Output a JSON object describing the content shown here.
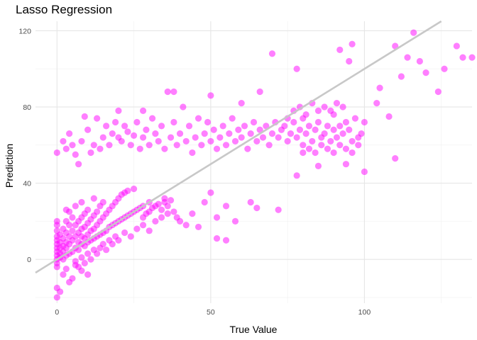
{
  "chart_data": {
    "type": "scatter",
    "title": "Lasso Regression",
    "xlabel": "True Value",
    "ylabel": "Prediction",
    "xlim": [
      -7,
      135
    ],
    "ylim": [
      -23,
      125
    ],
    "x_ticks": [
      0,
      50,
      100
    ],
    "y_ticks": [
      0,
      40,
      80,
      120
    ],
    "grid": true,
    "point_color": "#FF00FF",
    "point_opacity": 0.5,
    "reference_line": {
      "slope": 1,
      "intercept": 0,
      "color": "#C8C8C8"
    },
    "series": [
      {
        "points": [
          [
            0,
            -20
          ],
          [
            0,
            -15
          ],
          [
            1,
            -17
          ],
          [
            2,
            -8
          ],
          [
            4,
            -12
          ],
          [
            5,
            -10
          ],
          [
            3,
            -5
          ],
          [
            6,
            -3
          ],
          [
            8,
            -6
          ],
          [
            10,
            -8
          ],
          [
            0,
            0
          ],
          [
            0,
            2
          ],
          [
            0,
            4
          ],
          [
            0,
            6
          ],
          [
            0,
            8
          ],
          [
            0,
            10
          ],
          [
            0,
            12
          ],
          [
            0,
            15
          ],
          [
            0,
            18
          ],
          [
            0,
            20
          ],
          [
            0,
            -2
          ],
          [
            0,
            -4
          ],
          [
            1,
            1
          ],
          [
            1,
            3
          ],
          [
            1,
            6
          ],
          [
            1,
            9
          ],
          [
            1,
            13
          ],
          [
            2,
            0
          ],
          [
            2,
            4
          ],
          [
            2,
            7
          ],
          [
            2,
            11
          ],
          [
            2,
            16
          ],
          [
            3,
            2
          ],
          [
            3,
            6
          ],
          [
            3,
            9
          ],
          [
            3,
            14
          ],
          [
            3,
            20
          ],
          [
            3,
            26
          ],
          [
            4,
            3
          ],
          [
            4,
            8
          ],
          [
            4,
            12
          ],
          [
            4,
            18
          ],
          [
            4,
            25
          ],
          [
            5,
            4
          ],
          [
            5,
            10
          ],
          [
            5,
            15
          ],
          [
            5,
            22
          ],
          [
            6,
            6
          ],
          [
            6,
            12
          ],
          [
            6,
            18
          ],
          [
            6,
            28
          ],
          [
            7,
            5
          ],
          [
            7,
            9
          ],
          [
            7,
            14
          ],
          [
            7,
            20
          ],
          [
            8,
            8
          ],
          [
            8,
            12
          ],
          [
            8,
            16
          ],
          [
            8,
            22
          ],
          [
            8,
            30
          ],
          [
            9,
            7
          ],
          [
            9,
            11
          ],
          [
            9,
            17
          ],
          [
            9,
            24
          ],
          [
            10,
            9
          ],
          [
            10,
            13
          ],
          [
            10,
            19
          ],
          [
            10,
            26
          ],
          [
            11,
            10
          ],
          [
            11,
            15
          ],
          [
            11,
            21
          ],
          [
            12,
            11
          ],
          [
            12,
            16
          ],
          [
            12,
            23
          ],
          [
            12,
            32
          ],
          [
            13,
            12
          ],
          [
            13,
            18
          ],
          [
            13,
            25
          ],
          [
            14,
            13
          ],
          [
            14,
            20
          ],
          [
            14,
            28
          ],
          [
            15,
            14
          ],
          [
            15,
            22
          ],
          [
            15,
            30
          ],
          [
            16,
            15
          ],
          [
            16,
            24
          ],
          [
            17,
            17
          ],
          [
            17,
            26
          ],
          [
            18,
            18
          ],
          [
            18,
            28
          ],
          [
            19,
            19
          ],
          [
            19,
            30
          ],
          [
            20,
            20
          ],
          [
            20,
            32
          ],
          [
            21,
            21
          ],
          [
            21,
            34
          ],
          [
            22,
            22
          ],
          [
            22,
            35
          ],
          [
            23,
            23
          ],
          [
            23,
            36
          ],
          [
            24,
            24
          ],
          [
            25,
            25
          ],
          [
            25,
            37
          ],
          [
            26,
            26
          ],
          [
            27,
            27
          ],
          [
            28,
            22
          ],
          [
            28,
            28
          ],
          [
            29,
            24
          ],
          [
            30,
            25
          ],
          [
            30,
            30
          ],
          [
            31,
            27
          ],
          [
            32,
            28
          ],
          [
            33,
            29
          ],
          [
            34,
            26
          ],
          [
            35,
            30
          ],
          [
            35,
            32
          ],
          [
            36,
            28
          ],
          [
            37,
            31
          ],
          [
            38,
            25
          ],
          [
            39,
            22
          ],
          [
            40,
            20
          ],
          [
            42,
            18
          ],
          [
            44,
            24
          ],
          [
            46,
            17
          ],
          [
            48,
            30
          ],
          [
            50,
            35
          ],
          [
            52,
            22
          ],
          [
            55,
            28
          ],
          [
            6,
            -1
          ],
          [
            7,
            -4
          ],
          [
            8,
            1
          ],
          [
            9,
            -2
          ],
          [
            10,
            3
          ],
          [
            11,
            0
          ],
          [
            12,
            5
          ],
          [
            13,
            3
          ],
          [
            14,
            6
          ],
          [
            15,
            8
          ],
          [
            16,
            5
          ],
          [
            17,
            10
          ],
          [
            18,
            8
          ],
          [
            19,
            12
          ],
          [
            20,
            10
          ],
          [
            22,
            14
          ],
          [
            24,
            12
          ],
          [
            26,
            16
          ],
          [
            28,
            18
          ],
          [
            30,
            15
          ],
          [
            32,
            20
          ],
          [
            34,
            22
          ],
          [
            36,
            24
          ],
          [
            0,
            56
          ],
          [
            2,
            62
          ],
          [
            3,
            58
          ],
          [
            4,
            66
          ],
          [
            5,
            60
          ],
          [
            6,
            55
          ],
          [
            7,
            50
          ],
          [
            8,
            62
          ],
          [
            9,
            75
          ],
          [
            10,
            68
          ],
          [
            11,
            56
          ],
          [
            12,
            60
          ],
          [
            13,
            74
          ],
          [
            14,
            58
          ],
          [
            15,
            64
          ],
          [
            16,
            70
          ],
          [
            17,
            60
          ],
          [
            18,
            66
          ],
          [
            19,
            72
          ],
          [
            20,
            64
          ],
          [
            20,
            78
          ],
          [
            21,
            62
          ],
          [
            22,
            70
          ],
          [
            23,
            67
          ],
          [
            24,
            60
          ],
          [
            25,
            65
          ],
          [
            26,
            72
          ],
          [
            27,
            58
          ],
          [
            28,
            64
          ],
          [
            28,
            78
          ],
          [
            29,
            68
          ],
          [
            30,
            60
          ],
          [
            31,
            74
          ],
          [
            32,
            66
          ],
          [
            33,
            62
          ],
          [
            34,
            70
          ],
          [
            35,
            58
          ],
          [
            36,
            88
          ],
          [
            37,
            64
          ],
          [
            38,
            72
          ],
          [
            38,
            88
          ],
          [
            39,
            60
          ],
          [
            40,
            66
          ],
          [
            41,
            80
          ],
          [
            42,
            62
          ],
          [
            43,
            70
          ],
          [
            44,
            56
          ],
          [
            45,
            64
          ],
          [
            46,
            74
          ],
          [
            47,
            60
          ],
          [
            48,
            66
          ],
          [
            49,
            72
          ],
          [
            50,
            62
          ],
          [
            50,
            86
          ],
          [
            51,
            68
          ],
          [
            52,
            58
          ],
          [
            53,
            64
          ],
          [
            54,
            70
          ],
          [
            55,
            60
          ],
          [
            56,
            66
          ],
          [
            57,
            74
          ],
          [
            58,
            62
          ],
          [
            59,
            68
          ],
          [
            60,
            64
          ],
          [
            60,
            82
          ],
          [
            61,
            70
          ],
          [
            62,
            58
          ],
          [
            63,
            66
          ],
          [
            64,
            72
          ],
          [
            65,
            62
          ],
          [
            66,
            68
          ],
          [
            66,
            88
          ],
          [
            67,
            64
          ],
          [
            68,
            70
          ],
          [
            69,
            60
          ],
          [
            70,
            66
          ],
          [
            70,
            108
          ],
          [
            71,
            72
          ],
          [
            72,
            64
          ],
          [
            73,
            68
          ],
          [
            74,
            70
          ],
          [
            75,
            62
          ],
          [
            76,
            66
          ],
          [
            77,
            72
          ],
          [
            78,
            64
          ],
          [
            78,
            100
          ],
          [
            79,
            68
          ],
          [
            80,
            60
          ],
          [
            80,
            74
          ],
          [
            81,
            66
          ],
          [
            82,
            70
          ],
          [
            83,
            62
          ],
          [
            84,
            68
          ],
          [
            85,
            72
          ],
          [
            86,
            64
          ],
          [
            87,
            66
          ],
          [
            88,
            70
          ],
          [
            89,
            62
          ],
          [
            90,
            68
          ],
          [
            90,
            76
          ],
          [
            91,
            64
          ],
          [
            92,
            70
          ],
          [
            93,
            66
          ],
          [
            94,
            72
          ],
          [
            95,
            68
          ],
          [
            96,
            62
          ],
          [
            97,
            74
          ],
          [
            98,
            60
          ],
          [
            99,
            66
          ],
          [
            100,
            72
          ],
          [
            92,
            110
          ],
          [
            95,
            104
          ],
          [
            96,
            113
          ],
          [
            100,
            46
          ],
          [
            104,
            82
          ],
          [
            105,
            90
          ],
          [
            108,
            75
          ],
          [
            110,
            112
          ],
          [
            112,
            96
          ],
          [
            114,
            106
          ],
          [
            116,
            119
          ],
          [
            118,
            104
          ],
          [
            120,
            98
          ],
          [
            124,
            88
          ],
          [
            126,
            100
          ],
          [
            130,
            112
          ],
          [
            132,
            106
          ],
          [
            135,
            106
          ],
          [
            110,
            53
          ],
          [
            94,
            50
          ],
          [
            85,
            49
          ],
          [
            78,
            44
          ],
          [
            72,
            26
          ],
          [
            65,
            27
          ],
          [
            63,
            30
          ],
          [
            58,
            20
          ],
          [
            55,
            10
          ],
          [
            52,
            11
          ],
          [
            80,
            56
          ],
          [
            82,
            58
          ],
          [
            84,
            56
          ],
          [
            86,
            60
          ],
          [
            88,
            58
          ],
          [
            90,
            56
          ],
          [
            92,
            60
          ],
          [
            94,
            58
          ],
          [
            96,
            56
          ],
          [
            98,
            64
          ],
          [
            75,
            74
          ],
          [
            77,
            78
          ],
          [
            79,
            80
          ],
          [
            81,
            76
          ],
          [
            83,
            82
          ],
          [
            85,
            78
          ],
          [
            87,
            80
          ],
          [
            89,
            78
          ],
          [
            91,
            82
          ],
          [
            93,
            80
          ]
        ]
      }
    ]
  }
}
